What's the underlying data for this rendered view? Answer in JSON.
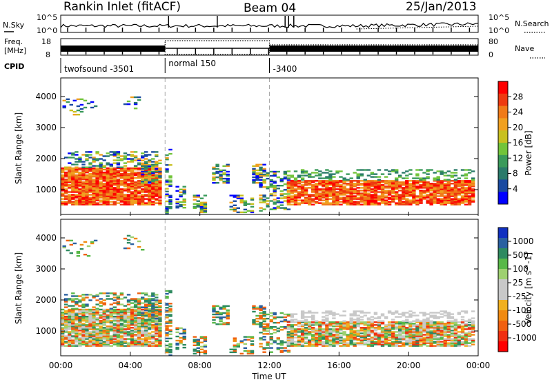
{
  "header": {
    "title": "Rankin Inlet (fitACF)",
    "beam": "Beam 04",
    "date": "25/Jan/2013"
  },
  "status_panels": {
    "nsky_label": "N.Sky",
    "nsky_top": "10^5",
    "nsky_bottom": "10^0",
    "nsearch_label": "N.Search",
    "nsearch_top": "10^5",
    "nsearch_bottom": "10^0",
    "freq_label": "Freq.",
    "freq_unit": "[MHz]",
    "freq_top": "18",
    "freq_bottom": "8",
    "nave_label": "Nave",
    "nave_top": "80",
    "nave_bottom": "0",
    "cpid_label": "CPID",
    "cpid_segments": [
      {
        "label": "twofsound -3501",
        "start_hour": 0,
        "end_hour": 6
      },
      {
        "label": "normal 150",
        "start_hour": 6,
        "end_hour": 12
      },
      {
        "label": "-3400",
        "start_hour": 12,
        "end_hour": 24
      }
    ]
  },
  "chart_data": [
    {
      "type": "heatmap",
      "name": "power",
      "ylabel": "Slant Range [km]",
      "yticks": [
        1000,
        2000,
        3000,
        4000
      ],
      "ylim": [
        200,
        4600
      ],
      "xlim": [
        0,
        24
      ],
      "colorbar": {
        "label": "Power [dB]",
        "ticks": [
          "28",
          "24",
          "20",
          "16",
          "12",
          "8",
          "4"
        ],
        "colors": [
          "#ff0000",
          "#ee3a10",
          "#f07a18",
          "#f0a020",
          "#c8c020",
          "#72c43a",
          "#3a9a5a",
          "#2a7a6a",
          "#1a4aa0",
          "#0000ff"
        ]
      }
    },
    {
      "type": "heatmap",
      "name": "velocity",
      "ylabel": "Slant Range [km]",
      "yticks": [
        1000,
        2000,
        3000,
        4000
      ],
      "ylim": [
        200,
        4600
      ],
      "xlim": [
        0,
        24
      ],
      "xlabel": "Time UT",
      "xticks": [
        "00:00",
        "04:00",
        "08:00",
        "12:00",
        "16:00",
        "20:00",
        "00:00"
      ],
      "colorbar": {
        "label": "Velocity [m s^-1]",
        "ticks": [
          "1000",
          "500",
          "100",
          "25",
          "-25",
          "-100",
          "-500",
          "-1000"
        ],
        "colors": [
          "#1030c0",
          "#2a60a0",
          "#2e8a60",
          "#58b848",
          "#9ed070",
          "#c8c8c8",
          "#c8c8c8",
          "#f0b020",
          "#f08a10",
          "#f06010",
          "#f03010",
          "#ff0000"
        ]
      }
    }
  ]
}
